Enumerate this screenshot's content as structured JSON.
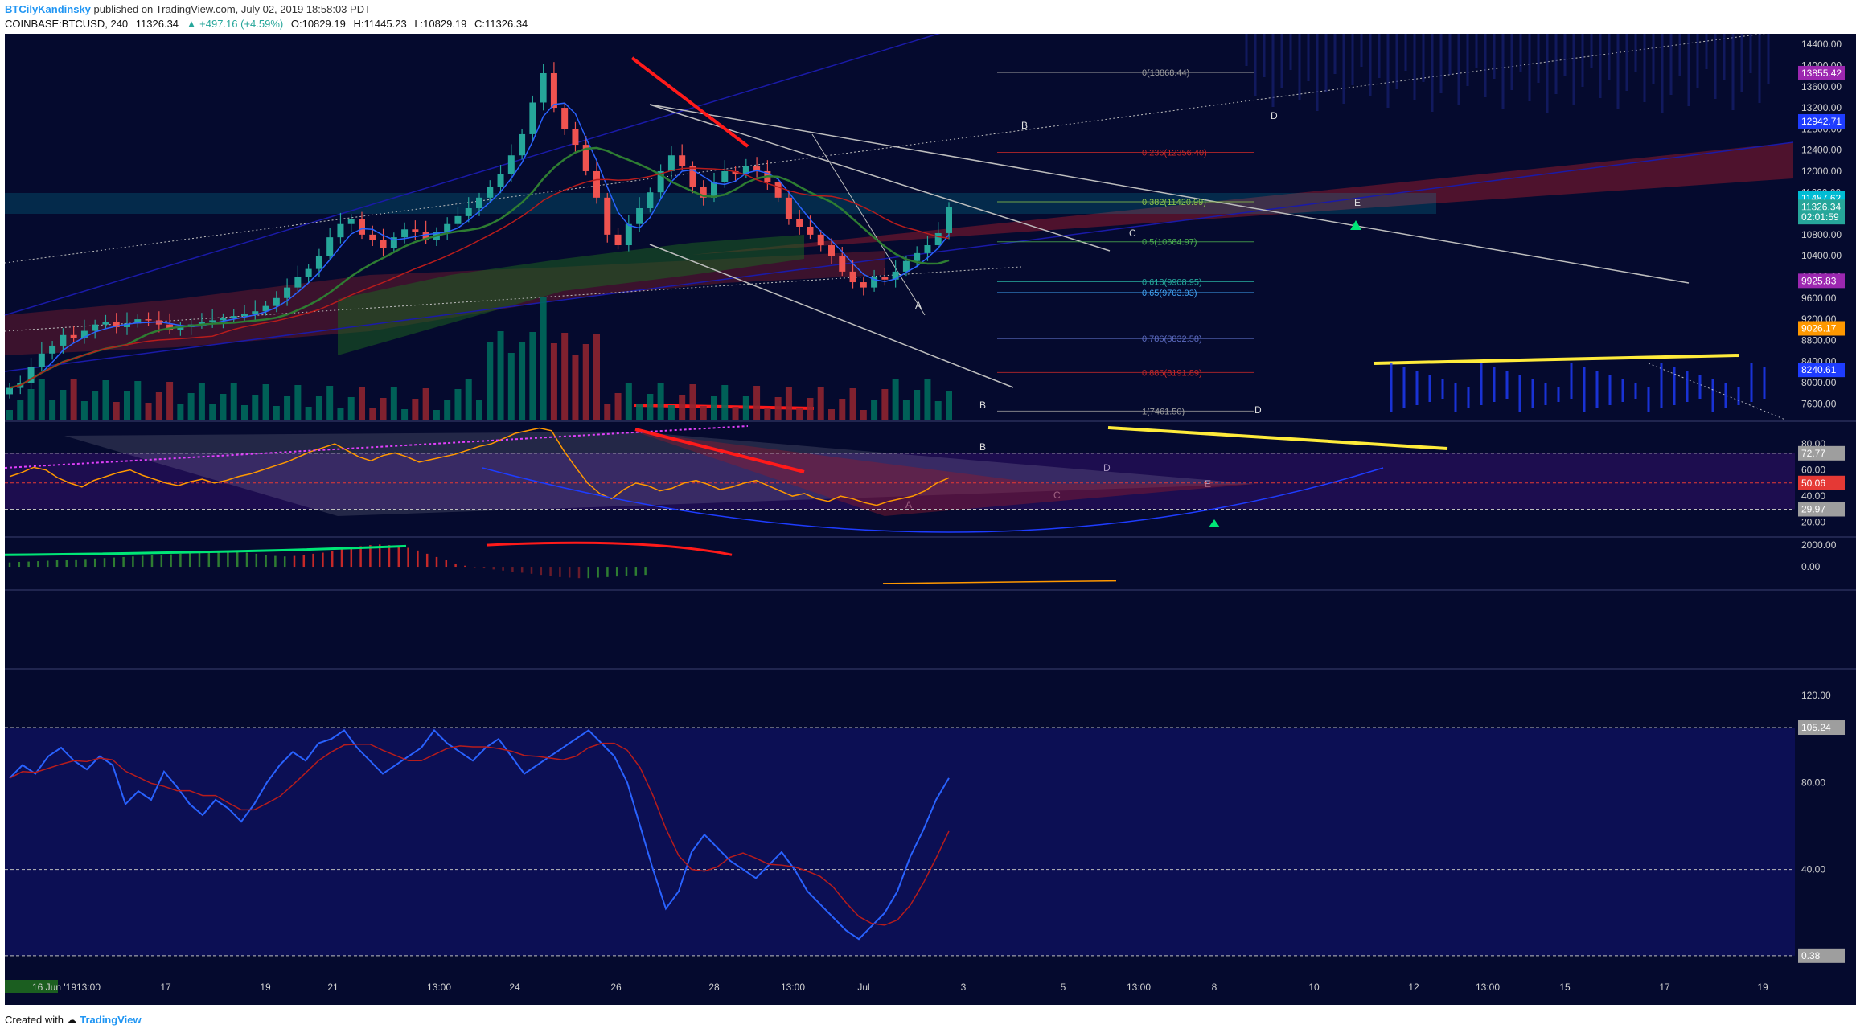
{
  "header": {
    "author": "BTCilyKandinsky",
    "published": "published on TradingView.com, July 02, 2019 18:58:03 PDT",
    "symbol": "COINBASE:BTCUSD, 240",
    "last": "11326.34",
    "change": "▲ +497.16 (+4.59%)",
    "open": "O:10829.19",
    "high": "H:11445.23",
    "low": "L:10829.19",
    "close": "C:11326.34"
  },
  "footer": {
    "created_with": "Created with",
    "brand": "TradingView"
  },
  "colors": {
    "background": "#050a2e",
    "bull": "#26a69a",
    "bear": "#ef5350",
    "yellow": "#ffeb3b",
    "fib_line": "#9e9e9e",
    "ichimoku_cloud": "#1b5e20",
    "triangle": "#8b1a2e",
    "channel": "#1a1aa8"
  },
  "chart_data": {
    "type": "candlestick",
    "interval": "4h",
    "price_range": [
      7300,
      14600
    ],
    "price_ticks": [
      "14400.00",
      "14000.00",
      "13600.00",
      "13200.00",
      "12800.00",
      "12400.00",
      "12000.00",
      "11600.00",
      "11200.00",
      "10800.00",
      "10400.00",
      "10000.00",
      "9600.00",
      "9200.00",
      "8800.00",
      "8400.00",
      "8000.00",
      "7600.00"
    ],
    "price_tags": [
      {
        "text": "13855.42",
        "value": 13855.42,
        "color": "#9c27b0"
      },
      {
        "text": "12942.71",
        "value": 12942.71,
        "color": "#1e3cff"
      },
      {
        "text": "11487.62",
        "value": 11487.62,
        "color": "#00bcd4"
      },
      {
        "text": "11326.34",
        "value": 11326.34,
        "color": "#26a69a"
      },
      {
        "text": "02:01:59",
        "value": 11130,
        "color": "#26a69a"
      },
      {
        "text": "9925.83",
        "value": 9925.83,
        "color": "#9c27b0"
      },
      {
        "text": "9026.17",
        "value": 9026.17,
        "color": "#ff9800"
      },
      {
        "text": "8240.61",
        "value": 8240.61,
        "color": "#1e3cff"
      }
    ],
    "fib_levels": [
      {
        "label": "0(13868.44)",
        "value": 13868.44,
        "color": "#9e9e9e"
      },
      {
        "label": "0.236(12356.40)",
        "value": 12356.4,
        "color": "#c62828"
      },
      {
        "label": "0.382(11420.99)",
        "value": 11420.99,
        "color": "#8bc34a"
      },
      {
        "label": "0.5(10664.97)",
        "value": 10664.97,
        "color": "#4caf50"
      },
      {
        "label": "0.618(9908.95)",
        "value": 9908.95,
        "color": "#26a69a"
      },
      {
        "label": "0.65(9703.93)",
        "value": 9703.93,
        "color": "#42a5f5"
      },
      {
        "label": "0.786(8832.58)",
        "value": 8832.58,
        "color": "#5c6bc0"
      },
      {
        "label": "0.886(8191.89)",
        "value": 8191.89,
        "color": "#c62828"
      },
      {
        "label": "1(7461.50)",
        "value": 7461.5,
        "color": "#9e9e9e"
      }
    ],
    "close_series": [
      7900,
      8000,
      8300,
      8550,
      8700,
      8900,
      8850,
      8980,
      9100,
      9150,
      9050,
      9120,
      9200,
      9180,
      9100,
      9000,
      9050,
      9100,
      9150,
      9180,
      9220,
      9260,
      9300,
      9350,
      9450,
      9600,
      9800,
      10000,
      10150,
      10400,
      10750,
      11000,
      11100,
      10800,
      10700,
      10550,
      10750,
      10900,
      10850,
      10700,
      10850,
      11000,
      11150,
      11300,
      11500,
      11700,
      11950,
      12300,
      12700,
      13300,
      13855,
      13200,
      12800,
      12500,
      12000,
      11500,
      10800,
      10600,
      11000,
      11300,
      11600,
      12000,
      12300,
      12100,
      11700,
      11500,
      11800,
      12000,
      11950,
      12100,
      12000,
      11800,
      11500,
      11100,
      10950,
      10800,
      10600,
      10400,
      10100,
      9900,
      9800,
      10000,
      9950,
      10100,
      10300,
      10450,
      10600,
      10829,
      11326
    ],
    "x_labels": [
      "16 Jun '19",
      "13:00",
      "17",
      "19",
      "21",
      "13:00",
      "24",
      "26",
      "28",
      "13:00",
      "Jul",
      "3",
      "5",
      "13:00",
      "8",
      "10",
      "12",
      "13:00",
      "15",
      "17",
      "19"
    ],
    "pattern_labels": {
      "price": [
        "A",
        "B",
        "C",
        "D",
        "E",
        "B",
        "D"
      ],
      "rsi": [
        "A",
        "B",
        "C",
        "D",
        "E"
      ]
    },
    "rsi": {
      "ticks": [
        "80.00",
        "60.00",
        "40.00",
        "20.00"
      ],
      "tags": [
        {
          "text": "72.77",
          "value": 72.77,
          "color": "#9e9e9e"
        },
        {
          "text": "50.06",
          "value": 50.06,
          "color": "#e53935"
        },
        {
          "text": "29.97",
          "value": 29.97,
          "color": "#9e9e9e"
        }
      ],
      "series": [
        55,
        58,
        62,
        60,
        54,
        50,
        47,
        52,
        55,
        58,
        60,
        56,
        53,
        50,
        48,
        51,
        53,
        50,
        52,
        55,
        57,
        60,
        63,
        66,
        70,
        74,
        77,
        80,
        75,
        70,
        67,
        71,
        73,
        70,
        66,
        68,
        70,
        72,
        75,
        78,
        80,
        84,
        88,
        90,
        92,
        90,
        75,
        62,
        50,
        42,
        38,
        45,
        50,
        48,
        44,
        46,
        50,
        52,
        49,
        45,
        47,
        50,
        52,
        48,
        44,
        40,
        42,
        38,
        36,
        40,
        38,
        35,
        33,
        36,
        38,
        40,
        44,
        50,
        54
      ],
      "range": [
        10,
        96
      ]
    },
    "macd": {
      "ticks": [
        "2000.00",
        "0.00"
      ],
      "range": [
        -2000,
        2600
      ],
      "histogram": [
        400,
        450,
        480,
        520,
        560,
        600,
        640,
        680,
        720,
        760,
        800,
        850,
        900,
        950,
        1000,
        1050,
        1100,
        1150,
        1200,
        1250,
        1300,
        1350,
        1400,
        1420,
        1380,
        1300,
        1200,
        1100,
        1000,
        950,
        1000,
        1100,
        1200,
        1300,
        1450,
        1600,
        1750,
        1900,
        2000,
        2050,
        2000,
        1900,
        1750,
        1500,
        1200,
        900,
        600,
        300,
        100,
        -50,
        -150,
        -250,
        -350,
        -450,
        -550,
        -650,
        -750,
        -850,
        -950,
        -1000,
        -1050,
        -1050,
        -1000,
        -950,
        -900,
        -850,
        -800,
        -750
      ]
    },
    "stoch": {
      "ticks": [
        "120.00",
        "80.00",
        "40.00"
      ],
      "range": [
        -20,
        130
      ],
      "tags": [
        {
          "text": "105.24",
          "value": 105.24,
          "color": "#9e9e9e"
        },
        {
          "text": "0.38",
          "value": 0.38,
          "color": "#9e9e9e"
        }
      ],
      "series": [
        82,
        88,
        84,
        92,
        96,
        90,
        86,
        92,
        88,
        70,
        76,
        72,
        85,
        78,
        70,
        65,
        72,
        68,
        62,
        70,
        80,
        88,
        94,
        90,
        98,
        100,
        104,
        96,
        90,
        84,
        88,
        92,
        96,
        104,
        98,
        94,
        90,
        96,
        100,
        92,
        84,
        88,
        92,
        96,
        100,
        104,
        98,
        92,
        80,
        60,
        40,
        22,
        30,
        48,
        56,
        50,
        44,
        40,
        36,
        42,
        48,
        40,
        30,
        24,
        18,
        12,
        8,
        14,
        20,
        30,
        46,
        58,
        72,
        82
      ]
    }
  }
}
